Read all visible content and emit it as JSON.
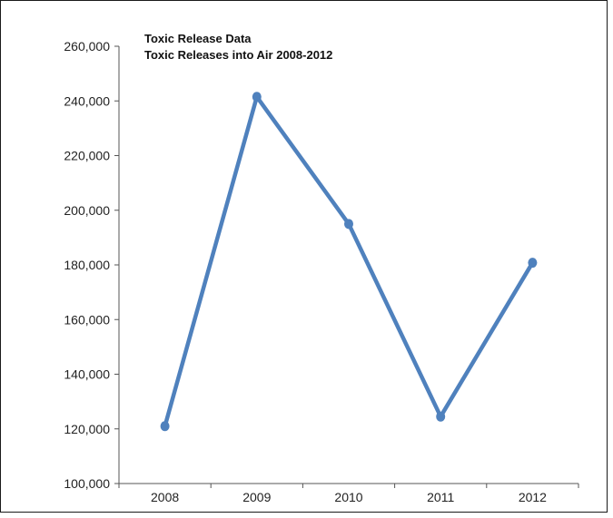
{
  "chart_data": {
    "type": "line",
    "title": "Toxic Release Data",
    "subtitle": "Toxic Releases into Air 2008-2012",
    "xlabel": "",
    "ylabel": "",
    "categories": [
      "2008",
      "2009",
      "2010",
      "2011",
      "2012"
    ],
    "series": [
      {
        "values": [
          121000,
          241500,
          195000,
          124500,
          180800
        ]
      }
    ],
    "ylim": [
      100000,
      260000
    ],
    "yticks": [
      100000,
      120000,
      140000,
      160000,
      180000,
      200000,
      220000,
      240000,
      260000
    ],
    "ytick_labels": [
      "100,000",
      "120,000",
      "140,000",
      "160,000",
      "180,000",
      "200,000",
      "220,000",
      "240,000",
      "260,000"
    ],
    "grid": false,
    "legend": "none",
    "line_color": "#4f81bd",
    "axis_color": "#555555"
  }
}
